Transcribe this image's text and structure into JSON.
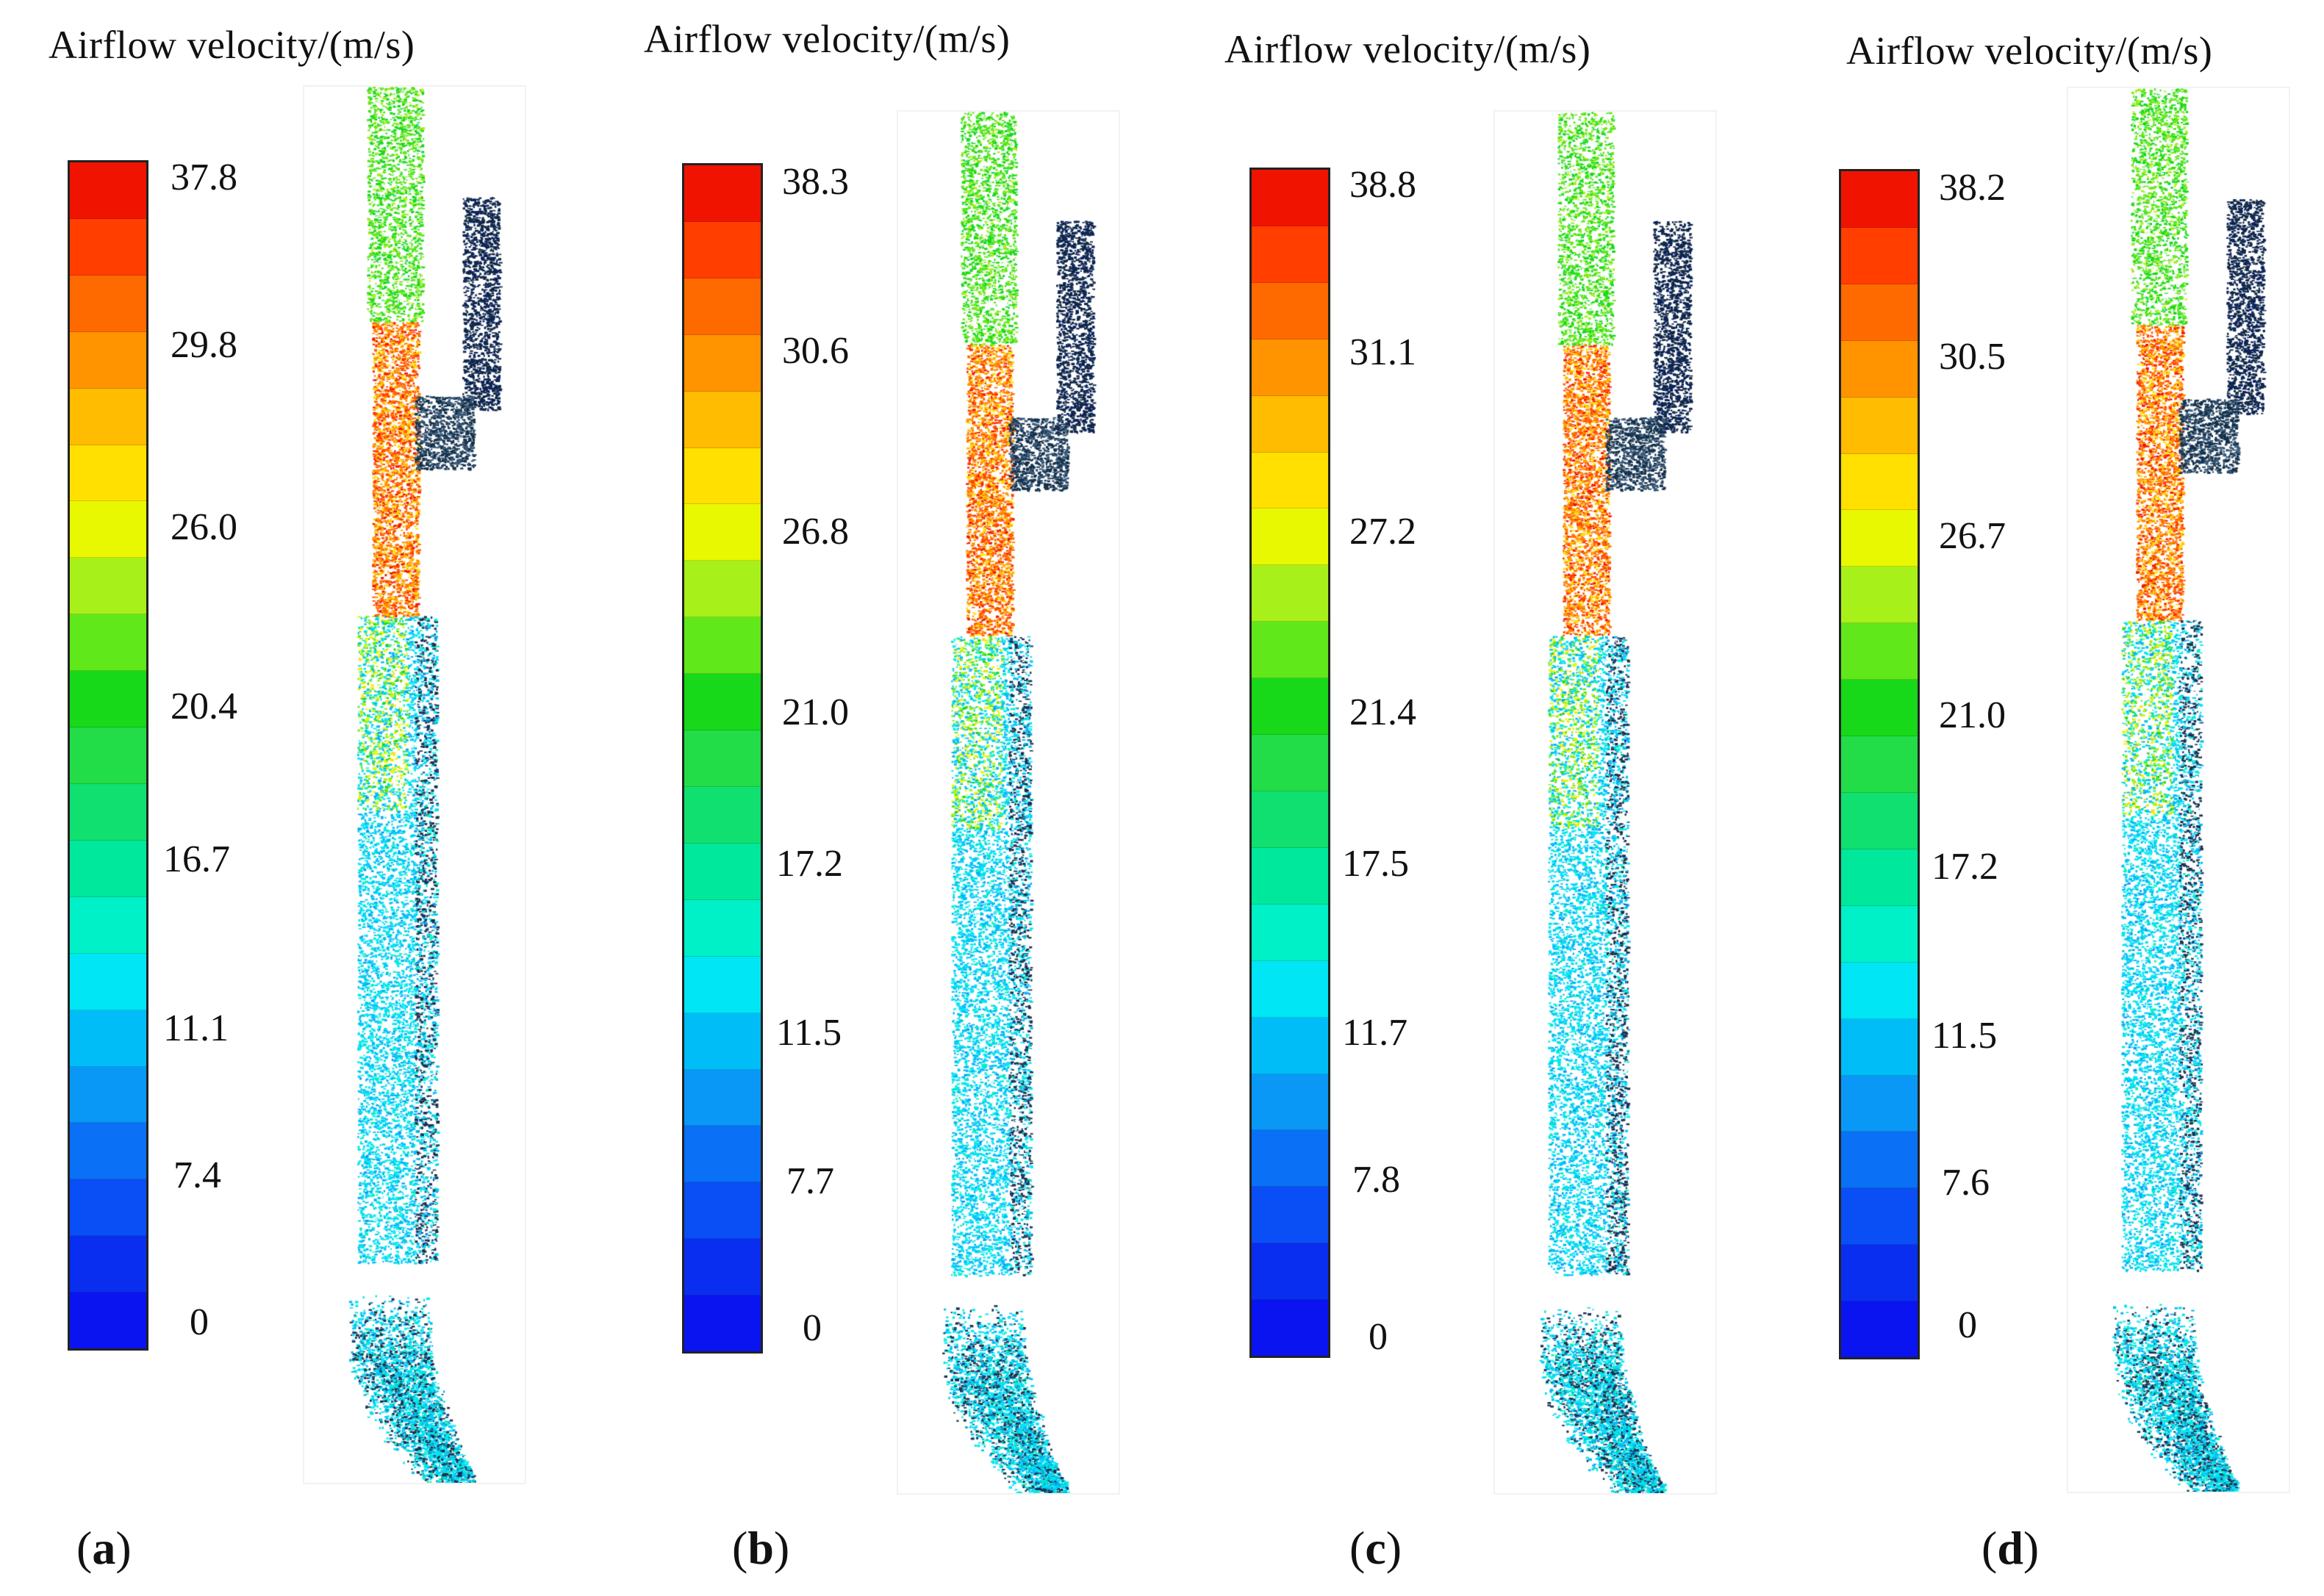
{
  "colors": [
    "#0a14f0",
    "#0a2ef0",
    "#0a4ef5",
    "#0a70f5",
    "#0a98f7",
    "#00bdf7",
    "#00e6f5",
    "#00f0c8",
    "#00e89c",
    "#10e070",
    "#22dc48",
    "#18d81a",
    "#60e81a",
    "#a8f01a",
    "#e8f800",
    "#ffe000",
    "#ffbc00",
    "#ff9400",
    "#ff6a00",
    "#ff3e00",
    "#f01400"
  ],
  "panels": [
    {
      "title": "Airflow velocity/(m/s)",
      "ticks": [
        "37.8",
        "29.8",
        "26.0",
        "20.4",
        "16.7",
        "11.1",
        "7.4",
        "0"
      ],
      "label_open": "(",
      "label_letter": "a",
      "label_close": ")"
    },
    {
      "title": "Airflow velocity/(m/s)",
      "ticks": [
        "38.3",
        "30.6",
        "26.8",
        "21.0",
        "17.2",
        "11.5",
        "7.7",
        "0"
      ],
      "label_open": "(",
      "label_letter": "b",
      "label_close": ")"
    },
    {
      "title": "Airflow velocity/(m/s)",
      "ticks": [
        "38.8",
        "31.1",
        "27.2",
        "21.4",
        "17.5",
        "11.7",
        "7.8",
        "0"
      ],
      "label_open": "(",
      "label_letter": "c",
      "label_close": ")"
    },
    {
      "title": "Airflow velocity/(m/s)",
      "ticks": [
        "38.2",
        "30.5",
        "26.7",
        "21.0",
        "17.2",
        "11.5",
        "7.6",
        "0"
      ],
      "label_open": "(",
      "label_letter": "d",
      "label_close": ")"
    }
  ]
}
